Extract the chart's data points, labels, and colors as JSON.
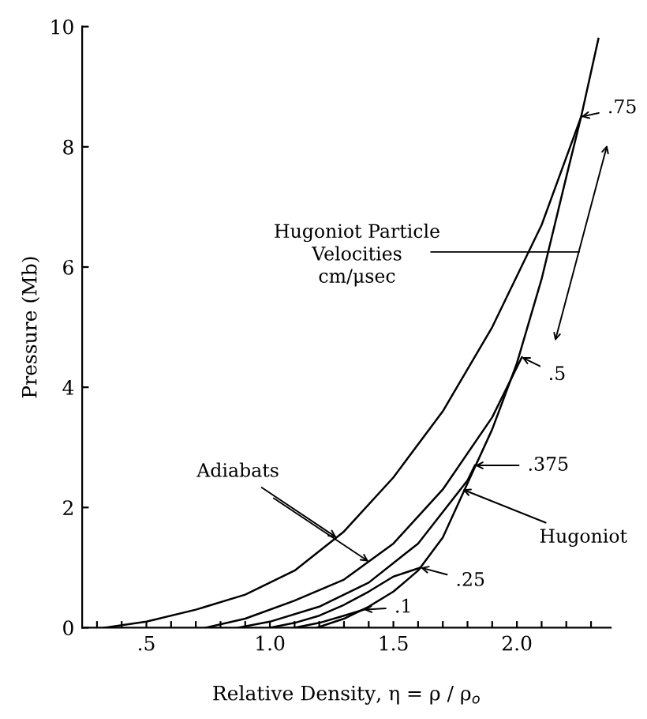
{
  "chart_data": {
    "type": "line",
    "xlabel": "Relative Density, η = ρ / ρ$_{o}$",
    "ylabel": "Pressure (Mb)",
    "xlim": [
      0.24,
      2.38
    ],
    "ylim": [
      0,
      10
    ],
    "xticks": [
      {
        "value": 0.3,
        "label": null
      },
      {
        "value": 0.4,
        "label": null
      },
      {
        "value": 0.5,
        "label": ".5"
      },
      {
        "value": 0.6,
        "label": null
      },
      {
        "value": 0.7,
        "label": null
      },
      {
        "value": 0.8,
        "label": null
      },
      {
        "value": 0.9,
        "label": null
      },
      {
        "value": 1.0,
        "label": "1.0"
      },
      {
        "value": 1.1,
        "label": null
      },
      {
        "value": 1.2,
        "label": null
      },
      {
        "value": 1.3,
        "label": null
      },
      {
        "value": 1.4,
        "label": null
      },
      {
        "value": 1.5,
        "label": "1.5"
      },
      {
        "value": 1.6,
        "label": null
      },
      {
        "value": 1.7,
        "label": null
      },
      {
        "value": 1.8,
        "label": null
      },
      {
        "value": 1.9,
        "label": null
      },
      {
        "value": 2.0,
        "label": "2.0"
      },
      {
        "value": 2.1,
        "label": null
      },
      {
        "value": 2.2,
        "label": null
      },
      {
        "value": 2.3,
        "label": null
      }
    ],
    "yticks": [
      0,
      2,
      4,
      6,
      8,
      10
    ],
    "grid": false,
    "legend": false,
    "marker": "none",
    "line_style": "solid",
    "series": [
      {
        "color": "#000000",
        "x": [
          1.19,
          1.3,
          1.4,
          1.5,
          1.6,
          1.7,
          1.8,
          1.9,
          2.0,
          2.1,
          2.2,
          2.26,
          2.33
        ],
        "values": [
          0,
          0.15,
          0.35,
          0.6,
          0.95,
          1.5,
          2.4,
          3.3,
          4.4,
          5.8,
          7.5,
          8.5,
          9.8
        ]
      },
      {
        "color": "#000000",
        "x": [
          0.33,
          0.5,
          0.7,
          0.9,
          1.1,
          1.3,
          1.5,
          1.7,
          1.9,
          2.1,
          2.26
        ],
        "values": [
          0,
          0.1,
          0.3,
          0.55,
          0.95,
          1.6,
          2.5,
          3.6,
          5.0,
          6.7,
          8.5
        ]
      },
      {
        "color": "#000000",
        "x": [
          0.74,
          0.9,
          1.1,
          1.3,
          1.5,
          1.7,
          1.9,
          2.02
        ],
        "values": [
          0,
          0.15,
          0.45,
          0.8,
          1.4,
          2.3,
          3.5,
          4.5
        ]
      },
      {
        "color": "#000000",
        "x": [
          0.87,
          1.0,
          1.2,
          1.4,
          1.6,
          1.8,
          1.83
        ],
        "values": [
          0,
          0.1,
          0.35,
          0.75,
          1.4,
          2.45,
          2.7
        ]
      },
      {
        "color": "#000000",
        "x": [
          1.0,
          1.1,
          1.2,
          1.3,
          1.4,
          1.5,
          1.61
        ],
        "values": [
          0,
          0.08,
          0.2,
          0.38,
          0.6,
          0.85,
          1.0
        ]
      },
      {
        "color": "#000000",
        "x": [
          1.1,
          1.2,
          1.3,
          1.38
        ],
        "values": [
          0,
          0.08,
          0.2,
          0.3
        ]
      }
    ],
    "annotations": [
      {
        "text": ".75",
        "x": 2.26,
        "y": 8.5
      },
      {
        "text": ".5",
        "x": 2.02,
        "y": 4.5
      },
      {
        "text": ".375",
        "x": 1.83,
        "y": 2.7
      },
      {
        "text": ".25",
        "x": 1.61,
        "y": 1.0
      },
      {
        "text": ".1",
        "x": 1.38,
        "y": 0.3
      },
      {
        "text": "Hugoniot",
        "x": 1.78,
        "y": 2.3
      },
      {
        "text": "Adiabats",
        "x": 1.27,
        "y": 1.5
      },
      "Hugoniot Particle\nVelocities\ncm/μsec"
    ]
  }
}
